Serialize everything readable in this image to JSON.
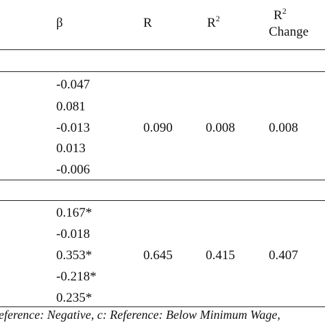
{
  "header": {
    "beta": "β",
    "r": "R",
    "r2_base": "R",
    "r2_sup": "2",
    "r2c_base": "R",
    "r2c_sup": "2",
    "r2c_line2": "Change"
  },
  "block1": {
    "betas": [
      "-0.047",
      "0.081",
      "-0.013",
      "0.013",
      "-0.006"
    ],
    "r": "0.090",
    "r2": "0.008",
    "r2_change": "0.008"
  },
  "block2": {
    "betas": [
      "0.167*",
      "-0.018",
      "0.353*",
      "-0.218*",
      "0.235*"
    ],
    "r": "0.645",
    "r2": "0.415",
    "r2_change": "0.407"
  },
  "footnote": "eference: Negative, c: Reference: Below Minimum Wage,"
}
